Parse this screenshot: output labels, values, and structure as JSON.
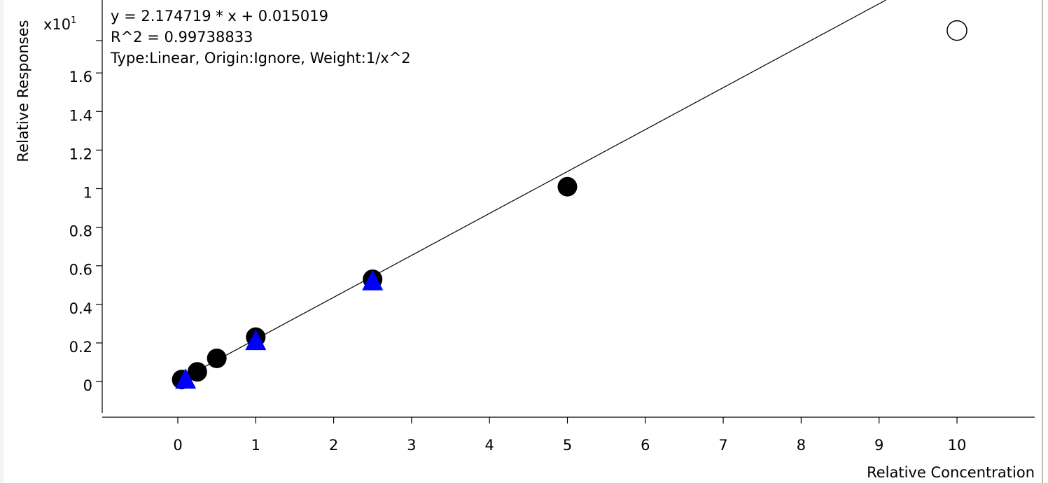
{
  "chart_data": {
    "type": "scatter",
    "ylabel": "Relative Responses",
    "xlabel": "Relative Concentration",
    "y_multiplier": {
      "base": "x10",
      "exponent": "1"
    },
    "annotations": [
      "y = 2.174719 * x  + 0.015019",
      "R^2 = 0.99738833",
      "Type:Linear, Origin:Ignore, Weight:1/x^2"
    ],
    "fit": {
      "slope": 2.174719,
      "intercept": 0.015019,
      "unit_scale": 10
    },
    "xlim": [
      -0.9,
      10.9
    ],
    "ylim": [
      -0.16,
      2.0
    ],
    "x_ticks": [
      0,
      1,
      2,
      3,
      4,
      5,
      6,
      7,
      8,
      9,
      10
    ],
    "x_tick_labels": [
      "0",
      "1",
      "2",
      "3",
      "4",
      "5",
      "6",
      "7",
      "8",
      "9",
      "10"
    ],
    "y_ticks": [
      0,
      0.2,
      0.4,
      0.6,
      0.8,
      1,
      1.2,
      1.4,
      1.6
    ],
    "y_tick_labels": [
      "0",
      "0.2",
      "0.4",
      "0.6",
      "0.8",
      "1",
      "1.2",
      "1.4",
      "1.6"
    ],
    "grid": false,
    "series": [
      {
        "marker": "circle-filled",
        "color": "#000000",
        "points": [
          [
            0.05,
            0.01
          ],
          [
            0.25,
            0.05
          ],
          [
            0.5,
            0.12
          ],
          [
            1.0,
            0.23
          ],
          [
            2.5,
            0.53
          ],
          [
            5.0,
            1.01
          ]
        ]
      },
      {
        "marker": "circle-open",
        "color": "#000000",
        "points": [
          [
            10.0,
            1.82
          ]
        ]
      },
      {
        "marker": "triangle",
        "color": "#0000ff",
        "points": [
          [
            0.1,
            0.01
          ],
          [
            1.0,
            0.21
          ],
          [
            2.5,
            0.52
          ]
        ]
      }
    ]
  }
}
